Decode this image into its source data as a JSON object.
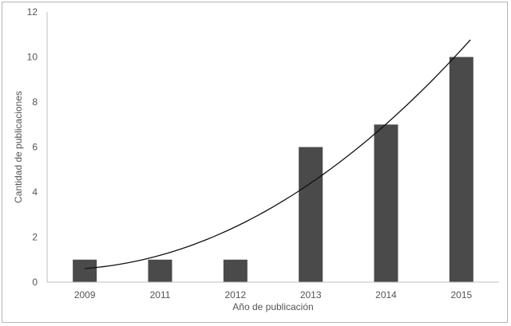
{
  "chart_data": {
    "type": "bar",
    "title": "",
    "xlabel": "Año de publicación",
    "ylabel": "Cantidad de publicaciones",
    "categories": [
      "2009",
      "2011",
      "2012",
      "2013",
      "2014",
      "2015"
    ],
    "values": [
      1,
      1,
      1,
      6,
      7,
      10
    ],
    "ylim": [
      0,
      12
    ],
    "yticks": [
      0,
      2,
      4,
      6,
      8,
      10,
      12
    ],
    "grid": false,
    "legend": "none",
    "bar_color": "#4a4a4a",
    "trendline": {
      "type": "polynomial",
      "order": 2,
      "color": "#111111"
    }
  }
}
